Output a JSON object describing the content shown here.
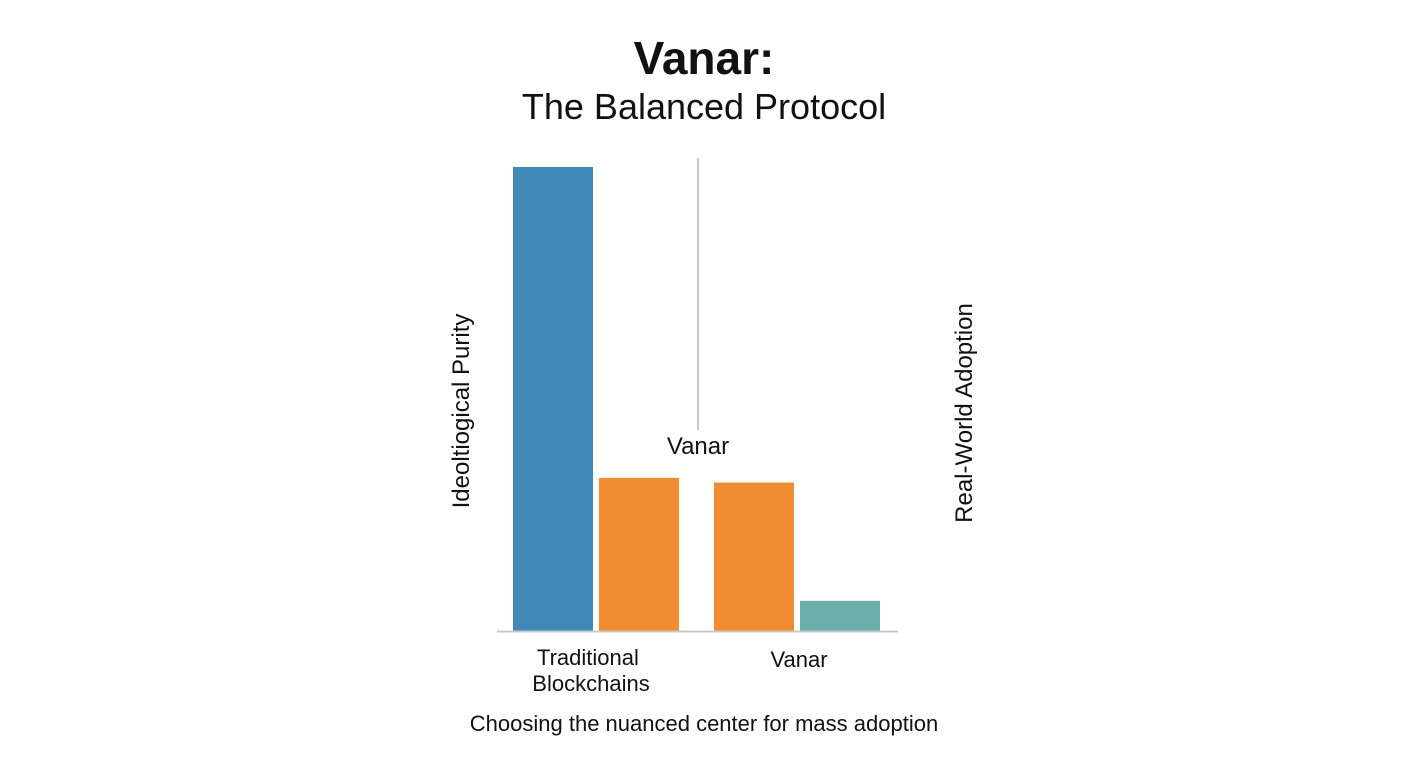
{
  "chart_data": {
    "type": "bar",
    "title": "Vanar:",
    "subtitle": "The Balanced Protocol",
    "caption": "Choosing the nuanced center for mass adoption",
    "ylabel_left": "Ideoltiogical Purity",
    "ylabel_right": "Real-World Adoption",
    "divider_label": "Vanar",
    "ylim": [
      0,
      100
    ],
    "grid": false,
    "groups": [
      {
        "label": "Traditional Blockchains",
        "bars": [
          {
            "value": 100,
            "color": "#3f88b8"
          },
          {
            "value": 33,
            "color": "#f08c32"
          }
        ]
      },
      {
        "label": "Vanar",
        "bars": [
          {
            "value": 32,
            "color": "#f08c32"
          },
          {
            "value": 6.5,
            "color": "#6aafaa"
          }
        ]
      }
    ]
  },
  "colors": {
    "blue": "#3f88b8",
    "orange": "#f08c32",
    "teal": "#6aafaa",
    "axis": "#c8c8c8"
  }
}
